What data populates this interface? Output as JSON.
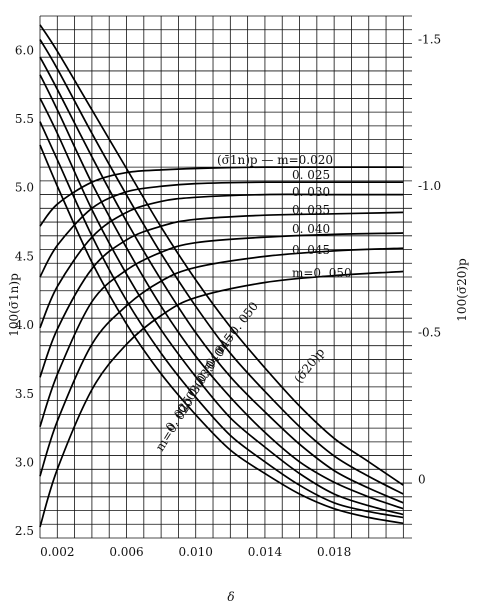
{
  "chart_data": {
    "type": "line",
    "xlabel": "δ",
    "ylabel_left": "100(σ̄1n)p",
    "ylabel_right": "100(σ̄20)p",
    "xlim": [
      0.001,
      0.0225
    ],
    "ylim_left": [
      2.45,
      6.25
    ],
    "ylim_right": [
      0.2,
      -1.58
    ],
    "grid": true,
    "x_ticks": [
      {
        "value": 0.002,
        "label": "0.002"
      },
      {
        "value": 0.006,
        "label": "0.006"
      },
      {
        "value": 0.01,
        "label": "0.010"
      },
      {
        "value": 0.014,
        "label": "0.014"
      },
      {
        "value": 0.018,
        "label": "0.018"
      }
    ],
    "y_left_ticks": [
      {
        "value": 2.5,
        "label": "2.5"
      },
      {
        "value": 3.0,
        "label": "3.0"
      },
      {
        "value": 3.5,
        "label": "3.5"
      },
      {
        "value": 4.0,
        "label": "4.0"
      },
      {
        "value": 4.5,
        "label": "4.5"
      },
      {
        "value": 5.0,
        "label": "5.0"
      },
      {
        "value": 5.5,
        "label": "5.5"
      },
      {
        "value": 6.0,
        "label": "6.0"
      }
    ],
    "y_right_ticks": [
      {
        "value": -1.5,
        "label": "-1.5"
      },
      {
        "value": -1.0,
        "label": "-1.0"
      },
      {
        "value": -0.5,
        "label": "-0.5"
      },
      {
        "value": 0,
        "label": "0"
      }
    ],
    "groups": [
      {
        "name": "(σ̄1n)p",
        "axis": "left",
        "series": [
          {
            "name": "m=0.020",
            "x": [
              0.001,
              0.002,
              0.004,
              0.006,
              0.008,
              0.01,
              0.014,
              0.018,
              0.022
            ],
            "y": [
              4.72,
              4.88,
              5.04,
              5.11,
              5.13,
              5.14,
              5.15,
              5.15,
              5.15
            ]
          },
          {
            "name": "0.025",
            "x": [
              0.001,
              0.002,
              0.004,
              0.006,
              0.008,
              0.01,
              0.014,
              0.018,
              0.022
            ],
            "y": [
              4.35,
              4.58,
              4.85,
              4.97,
              5.01,
              5.03,
              5.04,
              5.04,
              5.04
            ]
          },
          {
            "name": "0.030",
            "x": [
              0.001,
              0.002,
              0.004,
              0.006,
              0.008,
              0.01,
              0.014,
              0.018,
              0.022
            ],
            "y": [
              3.98,
              4.28,
              4.64,
              4.82,
              4.9,
              4.93,
              4.95,
              4.95,
              4.95
            ]
          },
          {
            "name": "0.035",
            "x": [
              0.001,
              0.002,
              0.004,
              0.006,
              0.008,
              0.01,
              0.014,
              0.018,
              0.022
            ],
            "y": [
              3.62,
              3.97,
              4.41,
              4.62,
              4.72,
              4.77,
              4.8,
              4.81,
              4.82
            ]
          },
          {
            "name": "0.040",
            "x": [
              0.001,
              0.002,
              0.004,
              0.006,
              0.008,
              0.01,
              0.014,
              0.018,
              0.022
            ],
            "y": [
              3.26,
              3.64,
              4.17,
              4.4,
              4.53,
              4.6,
              4.64,
              4.66,
              4.67
            ]
          },
          {
            "name": "0.045",
            "x": [
              0.001,
              0.002,
              0.004,
              0.006,
              0.008,
              0.01,
              0.014,
              0.018,
              0.022
            ],
            "y": [
              2.9,
              3.3,
              3.86,
              4.14,
              4.32,
              4.42,
              4.5,
              4.54,
              4.56
            ]
          },
          {
            "name": "m=0.050",
            "x": [
              0.001,
              0.002,
              0.004,
              0.006,
              0.008,
              0.01,
              0.014,
              0.018,
              0.022
            ],
            "y": [
              2.53,
              2.95,
              3.53,
              3.86,
              4.07,
              4.2,
              4.31,
              4.36,
              4.39
            ]
          }
        ]
      },
      {
        "name": "(σ̄20)p",
        "axis": "right",
        "series": [
          {
            "name": "m=0.050",
            "x": [
              0.001,
              0.002,
              0.004,
              0.006,
              0.008,
              0.01,
              0.012,
              0.014,
              0.016,
              0.018,
              0.02,
              0.022
            ],
            "y": [
              -1.55,
              -1.46,
              -1.26,
              -1.06,
              -0.86,
              -0.68,
              -0.52,
              -0.38,
              -0.25,
              -0.14,
              -0.06,
              0.02
            ]
          },
          {
            "name": "0.045",
            "x": [
              0.001,
              0.002,
              0.004,
              0.006,
              0.008,
              0.01,
              0.012,
              0.014,
              0.016,
              0.018,
              0.02,
              0.022
            ],
            "y": [
              -1.5,
              -1.4,
              -1.18,
              -0.97,
              -0.77,
              -0.59,
              -0.43,
              -0.3,
              -0.18,
              -0.08,
              -0.01,
              0.05
            ]
          },
          {
            "name": "0.040",
            "x": [
              0.001,
              0.002,
              0.004,
              0.006,
              0.008,
              0.01,
              0.012,
              0.014,
              0.016,
              0.018,
              0.02,
              0.022
            ],
            "y": [
              -1.44,
              -1.33,
              -1.1,
              -0.88,
              -0.68,
              -0.5,
              -0.35,
              -0.23,
              -0.12,
              -0.03,
              0.03,
              0.08
            ]
          },
          {
            "name": "0.035",
            "x": [
              0.001,
              0.002,
              0.004,
              0.006,
              0.008,
              0.01,
              0.012,
              0.014,
              0.016,
              0.018,
              0.02,
              0.022
            ],
            "y": [
              -1.38,
              -1.26,
              -1.01,
              -0.79,
              -0.59,
              -0.42,
              -0.28,
              -0.16,
              -0.06,
              0.01,
              0.06,
              0.1
            ]
          },
          {
            "name": "0.030",
            "x": [
              0.001,
              0.002,
              0.004,
              0.006,
              0.008,
              0.01,
              0.012,
              0.014,
              0.016,
              0.018,
              0.02,
              0.022
            ],
            "y": [
              -1.3,
              -1.18,
              -0.92,
              -0.7,
              -0.51,
              -0.35,
              -0.21,
              -0.11,
              -0.02,
              0.05,
              0.09,
              0.12
            ]
          },
          {
            "name": "0.025",
            "x": [
              0.001,
              0.002,
              0.004,
              0.006,
              0.008,
              0.01,
              0.012,
              0.014,
              0.016,
              0.018,
              0.02,
              0.022
            ],
            "y": [
              -1.22,
              -1.09,
              -0.83,
              -0.61,
              -0.43,
              -0.28,
              -0.15,
              -0.06,
              0.02,
              0.08,
              0.11,
              0.13
            ]
          },
          {
            "name": "m=0.020",
            "x": [
              0.001,
              0.002,
              0.004,
              0.006,
              0.008,
              0.01,
              0.012,
              0.014,
              0.016,
              0.018,
              0.02,
              0.022
            ],
            "y": [
              -1.14,
              -1.0,
              -0.74,
              -0.53,
              -0.36,
              -0.22,
              -0.1,
              -0.02,
              0.05,
              0.1,
              0.13,
              0.15
            ]
          }
        ]
      }
    ],
    "annotations": [
      {
        "text": "(σ̄1n)p — m=0.020",
        "target": "left-group-top"
      },
      {
        "text": "0. 025",
        "target": "left-0.025"
      },
      {
        "text": "0. 030",
        "target": "left-0.030"
      },
      {
        "text": "0. 035",
        "target": "left-0.035"
      },
      {
        "text": "0. 040",
        "target": "left-0.040"
      },
      {
        "text": "0. 045",
        "target": "left-0.045"
      },
      {
        "text": "m=0. 050",
        "target": "left-0.050"
      },
      {
        "text": "(σ̄20)p",
        "target": "right-group"
      },
      {
        "text": "m=0. 050",
        "target": "right-0.050"
      },
      {
        "text": "0. 045",
        "target": "right-0.045"
      },
      {
        "text": "0. 040",
        "target": "right-0.040"
      },
      {
        "text": "0. 035",
        "target": "right-0.035"
      },
      {
        "text": "0. 030",
        "target": "right-0.030"
      },
      {
        "text": "0. 025",
        "target": "right-0.025"
      },
      {
        "text": "m=0. 020",
        "target": "right-0.020"
      }
    ]
  }
}
